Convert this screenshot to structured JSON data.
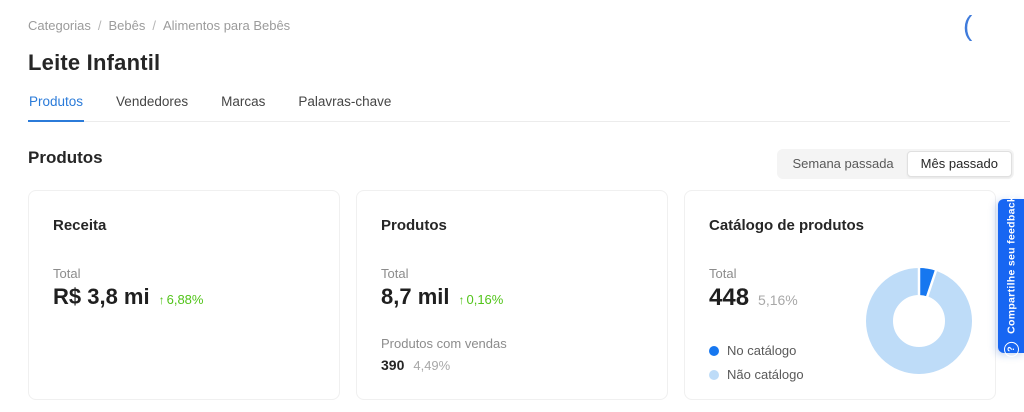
{
  "breadcrumb": {
    "separator": "/",
    "items": [
      "Categorias",
      "Bebês",
      "Alimentos para Bebês"
    ]
  },
  "spinner": {
    "glyph": "("
  },
  "page_title": "Leite Infantil",
  "tabs": [
    {
      "label": "Produtos",
      "active": true
    },
    {
      "label": "Vendedores",
      "active": false
    },
    {
      "label": "Marcas",
      "active": false
    },
    {
      "label": "Palavras-chave",
      "active": false
    }
  ],
  "section_title": "Produtos",
  "period_toggle": {
    "options": [
      {
        "label": "Semana passada",
        "selected": false
      },
      {
        "label": "Mês passado",
        "selected": true
      }
    ]
  },
  "icons": {
    "up_arrow": "↑",
    "question_mark": "?"
  },
  "colors": {
    "accent_blue": "#2b7bd9",
    "positive_green": "#52c41a",
    "feedback_blue": "#1766f2"
  },
  "cards": {
    "receita": {
      "title": "Receita",
      "total_label": "Total",
      "total_value": "R$ 3,8 mi",
      "change_pct": "6,88%",
      "change_direction": "up"
    },
    "produtos": {
      "title": "Produtos",
      "total_label": "Total",
      "total_value": "8,7 mil",
      "change_pct": "0,16%",
      "change_direction": "up",
      "sales_label": "Produtos com vendas",
      "sales_value": "390",
      "sales_pct": "4,49%"
    },
    "catalogo": {
      "title": "Catálogo de produtos",
      "total_label": "Total",
      "total_value": "448",
      "total_pct": "5,16%"
    }
  },
  "chart_data": {
    "type": "pie",
    "donut": true,
    "title": "Catálogo de produtos",
    "labels": [
      "No catálogo",
      "Não catálogo"
    ],
    "values": [
      5.16,
      94.84
    ],
    "unit": "percent of products",
    "colors": [
      "#1677f0",
      "#bedcf8"
    ],
    "legend_position": "left",
    "slice_start_angle_deg": 0
  },
  "feedback_tab": {
    "label": "Compartilhe seu feedback"
  }
}
